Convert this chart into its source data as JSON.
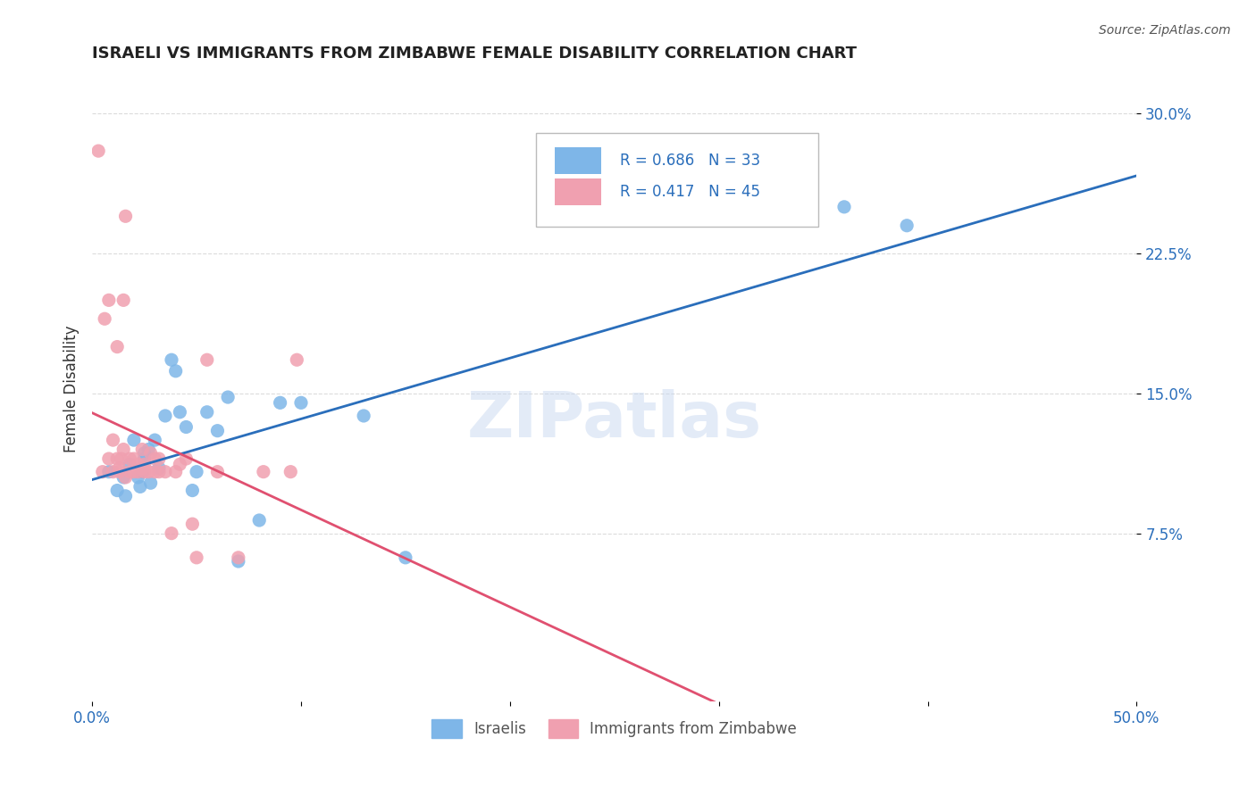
{
  "title": "ISRAELI VS IMMIGRANTS FROM ZIMBABWE FEMALE DISABILITY CORRELATION CHART",
  "source": "Source: ZipAtlas.com",
  "xlabel": "",
  "ylabel": "Female Disability",
  "xlim": [
    0.0,
    0.5
  ],
  "ylim": [
    -0.01,
    0.32
  ],
  "xticks": [
    0.0,
    0.1,
    0.2,
    0.3,
    0.4,
    0.5
  ],
  "xtick_labels": [
    "0.0%",
    "",
    "",
    "",
    "",
    "50.0%"
  ],
  "yticks": [
    0.075,
    0.15,
    0.225,
    0.3
  ],
  "ytick_labels": [
    "7.5%",
    "15.0%",
    "22.5%",
    "30.0%"
  ],
  "israeli_R": 0.686,
  "israeli_N": 33,
  "zimbabwe_R": 0.417,
  "zimbabwe_N": 45,
  "israeli_color": "#7EB6E8",
  "zimbabwe_color": "#F0A0B0",
  "israeli_line_color": "#2A6EBB",
  "zimbabwe_line_color": "#E05070",
  "background_color": "#FFFFFF",
  "grid_color": "#CCCCCC",
  "watermark": "ZIPatlas",
  "israeli_x": [
    0.008,
    0.012,
    0.015,
    0.016,
    0.018,
    0.02,
    0.022,
    0.023,
    0.024,
    0.025,
    0.025,
    0.027,
    0.028,
    0.03,
    0.032,
    0.035,
    0.038,
    0.04,
    0.042,
    0.045,
    0.048,
    0.05,
    0.055,
    0.06,
    0.065,
    0.07,
    0.08,
    0.09,
    0.1,
    0.13,
    0.15,
    0.36,
    0.39
  ],
  "israeli_y": [
    0.108,
    0.098,
    0.105,
    0.095,
    0.112,
    0.125,
    0.105,
    0.1,
    0.108,
    0.118,
    0.115,
    0.12,
    0.102,
    0.125,
    0.11,
    0.138,
    0.168,
    0.162,
    0.14,
    0.132,
    0.098,
    0.108,
    0.14,
    0.13,
    0.148,
    0.06,
    0.082,
    0.145,
    0.145,
    0.138,
    0.062,
    0.25,
    0.24
  ],
  "zimbabwe_x": [
    0.003,
    0.005,
    0.006,
    0.008,
    0.008,
    0.01,
    0.01,
    0.012,
    0.012,
    0.013,
    0.013,
    0.014,
    0.015,
    0.015,
    0.016,
    0.016,
    0.018,
    0.018,
    0.02,
    0.02,
    0.022,
    0.022,
    0.024,
    0.024,
    0.025,
    0.025,
    0.027,
    0.028,
    0.03,
    0.03,
    0.032,
    0.032,
    0.035,
    0.038,
    0.04,
    0.042,
    0.045,
    0.048,
    0.05,
    0.055,
    0.06,
    0.07,
    0.082,
    0.095,
    0.098
  ],
  "zimbabwe_y": [
    0.28,
    0.108,
    0.19,
    0.2,
    0.115,
    0.108,
    0.125,
    0.115,
    0.175,
    0.11,
    0.108,
    0.115,
    0.12,
    0.2,
    0.105,
    0.245,
    0.108,
    0.115,
    0.108,
    0.115,
    0.112,
    0.108,
    0.11,
    0.12,
    0.108,
    0.112,
    0.108,
    0.118,
    0.108,
    0.115,
    0.108,
    0.115,
    0.108,
    0.075,
    0.108,
    0.112,
    0.115,
    0.08,
    0.062,
    0.168,
    0.108,
    0.062,
    0.108,
    0.108,
    0.168
  ]
}
